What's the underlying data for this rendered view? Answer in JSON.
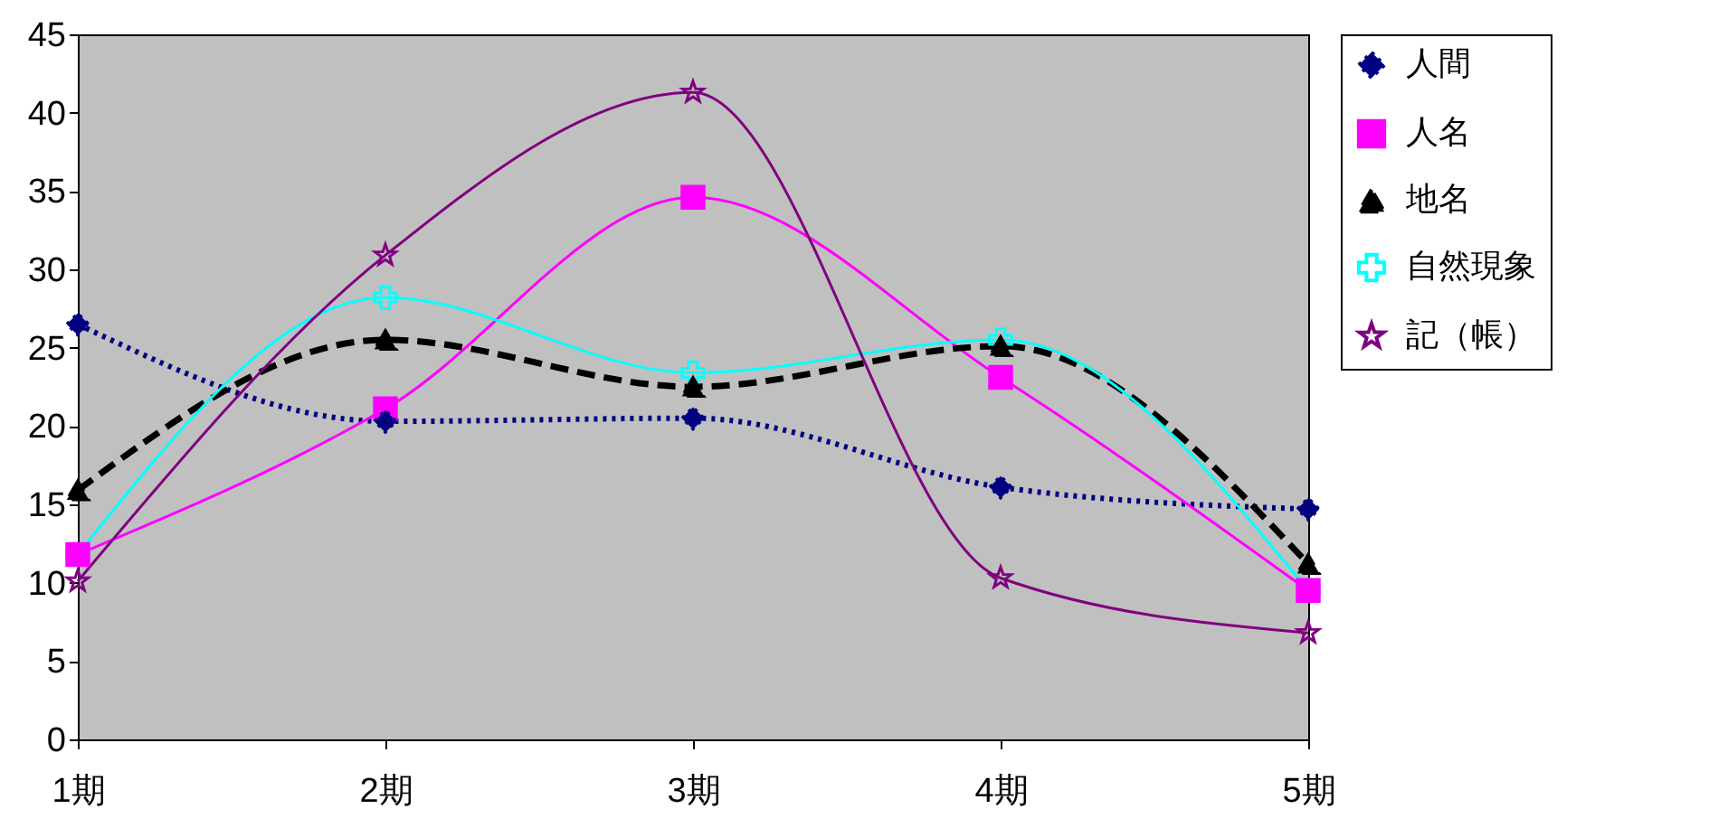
{
  "chart_data": {
    "type": "line",
    "categories": [
      "1期",
      "2期",
      "3期",
      "4期",
      "5期"
    ],
    "series": [
      {
        "name": "人間",
        "color": "#000080",
        "marker": "diamond",
        "line_style": "dotted",
        "values": [
          26.5,
          20.3,
          20.5,
          16.1,
          14.7
        ]
      },
      {
        "name": "人名",
        "color": "#ff00ff",
        "marker": "square",
        "line_style": "solid",
        "values": [
          11.8,
          21.1,
          34.6,
          23.1,
          9.5
        ]
      },
      {
        "name": "地名",
        "color": "#000000",
        "marker": "triangle",
        "line_style": "dashed",
        "values": [
          15.9,
          25.5,
          22.5,
          25.1,
          11.2
        ]
      },
      {
        "name": "自然現象",
        "color": "#00ffff",
        "marker": "cross",
        "line_style": "solid",
        "values": [
          11.8,
          28.2,
          23.4,
          25.5,
          9.5
        ]
      },
      {
        "name": "記（帳）",
        "color": "#800080",
        "marker": "star",
        "line_style": "solid",
        "values": [
          10.1,
          30.9,
          41.3,
          10.3,
          6.8
        ]
      }
    ],
    "ylim": [
      0,
      45
    ],
    "yticks": [
      0,
      5,
      10,
      15,
      20,
      25,
      30,
      35,
      40,
      45
    ],
    "grid": false,
    "legend": "right"
  }
}
